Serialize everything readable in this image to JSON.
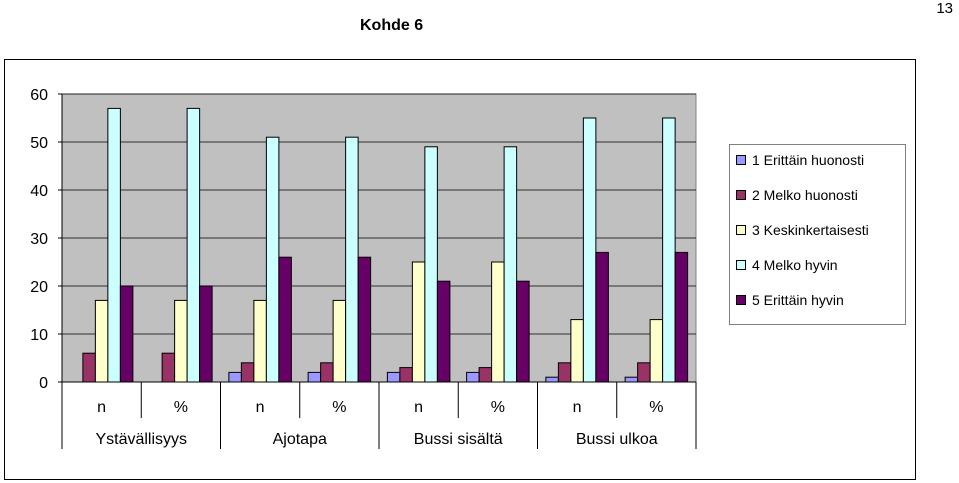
{
  "page_number": "13",
  "chart_data": {
    "type": "bar",
    "title": "Kohde 6",
    "categories": [
      "n",
      "%",
      "n",
      "%",
      "n",
      "%",
      "n",
      "%"
    ],
    "groups": [
      "Ystävällisyys",
      "Ajotapa",
      "Bussi sisältä",
      "Bussi ulkoa"
    ],
    "yticks": [
      "0",
      "10",
      "20",
      "30",
      "40",
      "50",
      "60"
    ],
    "ylim": [
      0,
      60
    ],
    "series": [
      {
        "name": "1 Erittäin huonosti",
        "color": "#9999ff",
        "values": [
          0,
          0,
          2,
          2,
          2,
          2,
          1,
          1
        ]
      },
      {
        "name": "2 Melko huonosti",
        "color": "#993366",
        "values": [
          6,
          6,
          4,
          4,
          3,
          3,
          4,
          4
        ]
      },
      {
        "name": "3 Keskinkertaisesti",
        "color": "#ffffcc",
        "values": [
          17,
          17,
          17,
          17,
          25,
          25,
          13,
          13
        ]
      },
      {
        "name": "4 Melko hyvin",
        "color": "#ccffff",
        "values": [
          57,
          57,
          51,
          51,
          49,
          49,
          55,
          55
        ]
      },
      {
        "name": "5 Erittäin hyvin",
        "color": "#660066",
        "values": [
          20,
          20,
          26,
          26,
          21,
          21,
          27,
          27
        ]
      }
    ],
    "plot_background": "#c0c0c0",
    "grid": true,
    "legend_position": "right"
  }
}
